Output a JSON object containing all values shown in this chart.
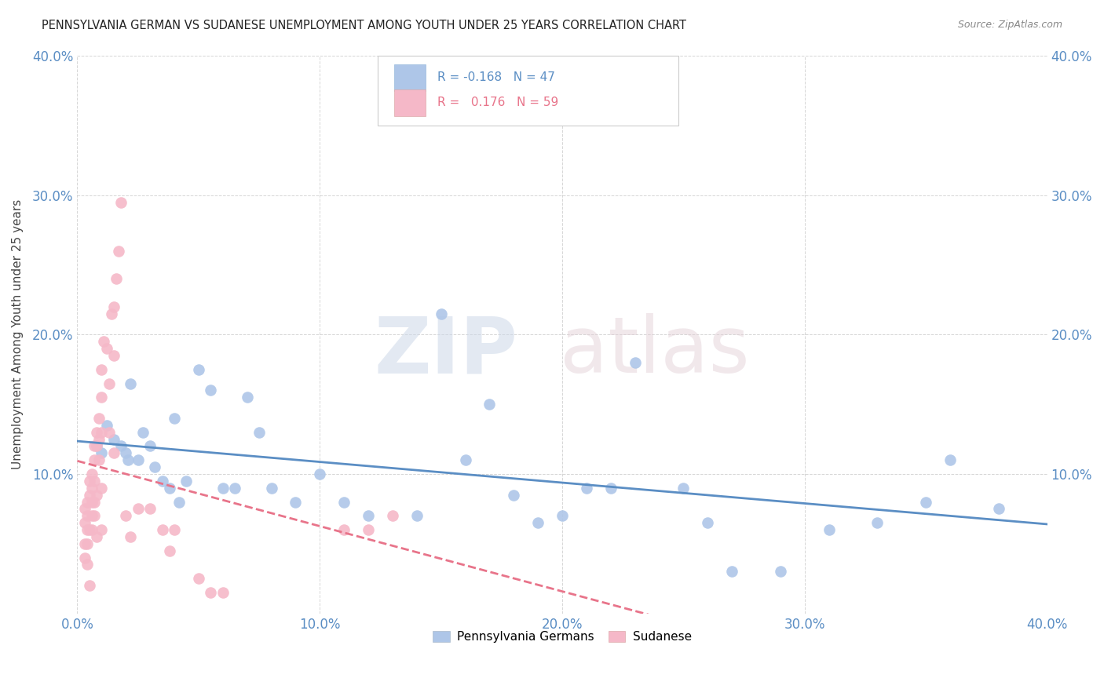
{
  "title": "PENNSYLVANIA GERMAN VS SUDANESE UNEMPLOYMENT AMONG YOUTH UNDER 25 YEARS CORRELATION CHART",
  "source": "Source: ZipAtlas.com",
  "ylabel": "Unemployment Among Youth under 25 years",
  "xlim": [
    0.0,
    0.4
  ],
  "ylim": [
    0.0,
    0.4
  ],
  "xticks": [
    0.0,
    0.1,
    0.2,
    0.3,
    0.4
  ],
  "yticks": [
    0.0,
    0.1,
    0.2,
    0.3,
    0.4
  ],
  "xticklabels": [
    "0.0%",
    "10.0%",
    "20.0%",
    "30.0%",
    "40.0%"
  ],
  "left_yticklabels": [
    "",
    "10.0%",
    "20.0%",
    "30.0%",
    "40.0%"
  ],
  "right_yticklabels": [
    "10.0%",
    "20.0%",
    "30.0%",
    "40.0%"
  ],
  "legend_labels": [
    "Pennsylvania Germans",
    "Sudanese"
  ],
  "pa_german_color": "#aec6e8",
  "sudanese_color": "#f5b8c8",
  "pa_german_line_color": "#5b8ec4",
  "sudanese_line_color": "#e8748a",
  "pa_german_R": -0.168,
  "pa_german_N": 47,
  "sudanese_R": 0.176,
  "sudanese_N": 59,
  "pa_german_x": [
    0.008,
    0.01,
    0.012,
    0.015,
    0.018,
    0.02,
    0.021,
    0.022,
    0.025,
    0.027,
    0.03,
    0.032,
    0.035,
    0.038,
    0.04,
    0.042,
    0.045,
    0.05,
    0.055,
    0.06,
    0.065,
    0.07,
    0.075,
    0.08,
    0.09,
    0.1,
    0.11,
    0.12,
    0.14,
    0.15,
    0.16,
    0.17,
    0.18,
    0.19,
    0.2,
    0.21,
    0.22,
    0.23,
    0.25,
    0.26,
    0.27,
    0.29,
    0.31,
    0.33,
    0.35,
    0.36,
    0.38
  ],
  "pa_german_y": [
    0.12,
    0.115,
    0.135,
    0.125,
    0.12,
    0.115,
    0.11,
    0.165,
    0.11,
    0.13,
    0.12,
    0.105,
    0.095,
    0.09,
    0.14,
    0.08,
    0.095,
    0.175,
    0.16,
    0.09,
    0.09,
    0.155,
    0.13,
    0.09,
    0.08,
    0.1,
    0.08,
    0.07,
    0.07,
    0.215,
    0.11,
    0.15,
    0.085,
    0.065,
    0.07,
    0.09,
    0.09,
    0.18,
    0.09,
    0.065,
    0.03,
    0.03,
    0.06,
    0.065,
    0.08,
    0.11,
    0.075
  ],
  "sudanese_x": [
    0.003,
    0.003,
    0.003,
    0.003,
    0.004,
    0.004,
    0.004,
    0.004,
    0.004,
    0.005,
    0.005,
    0.005,
    0.005,
    0.006,
    0.006,
    0.006,
    0.006,
    0.006,
    0.007,
    0.007,
    0.007,
    0.007,
    0.007,
    0.008,
    0.008,
    0.008,
    0.008,
    0.009,
    0.009,
    0.009,
    0.01,
    0.01,
    0.01,
    0.01,
    0.01,
    0.011,
    0.012,
    0.013,
    0.013,
    0.014,
    0.015,
    0.015,
    0.015,
    0.016,
    0.017,
    0.018,
    0.02,
    0.022,
    0.025,
    0.03,
    0.035,
    0.038,
    0.04,
    0.05,
    0.055,
    0.06,
    0.11,
    0.12,
    0.13
  ],
  "sudanese_y": [
    0.065,
    0.075,
    0.05,
    0.04,
    0.08,
    0.07,
    0.06,
    0.05,
    0.035,
    0.095,
    0.085,
    0.06,
    0.02,
    0.1,
    0.09,
    0.08,
    0.07,
    0.06,
    0.12,
    0.11,
    0.095,
    0.08,
    0.07,
    0.13,
    0.12,
    0.085,
    0.055,
    0.14,
    0.125,
    0.11,
    0.175,
    0.155,
    0.13,
    0.09,
    0.06,
    0.195,
    0.19,
    0.165,
    0.13,
    0.215,
    0.22,
    0.185,
    0.115,
    0.24,
    0.26,
    0.295,
    0.07,
    0.055,
    0.075,
    0.075,
    0.06,
    0.045,
    0.06,
    0.025,
    0.015,
    0.015,
    0.06,
    0.06,
    0.07
  ]
}
